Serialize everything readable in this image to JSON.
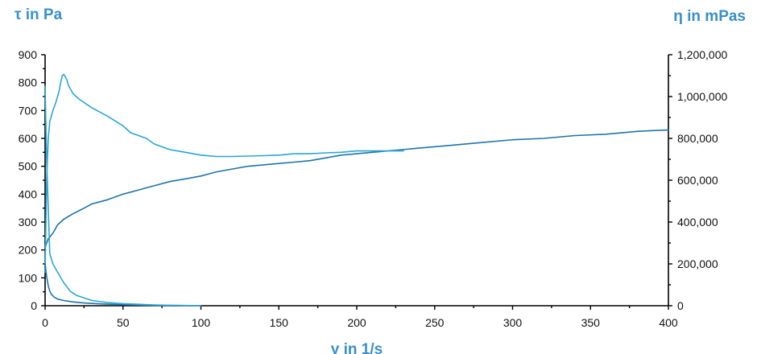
{
  "chart_data": {
    "type": "line",
    "title": "",
    "xlabel": "γ in 1/s",
    "ylabel": "τ in Pa",
    "y2label": "η in mPas",
    "xlim": [
      0,
      400
    ],
    "ylim": [
      0,
      900
    ],
    "y2lim": [
      0,
      1200000
    ],
    "x_ticks": [
      "0",
      "50",
      "100",
      "150",
      "200",
      "250",
      "300",
      "350",
      "400"
    ],
    "y_ticks": [
      "0",
      "100",
      "200",
      "300",
      "400",
      "500",
      "600",
      "700",
      "800",
      "900"
    ],
    "y2_ticks": [
      "0",
      "200,000",
      "400,000",
      "600,000",
      "800,000",
      "1,000,000",
      "1,200,000"
    ],
    "grid": false,
    "legend": "none",
    "colors": {
      "axis_title": "#3a8fc9",
      "series_dark": "#1f74ab",
      "series_light": "#2aa6d4"
    },
    "series": [
      {
        "axis": "left",
        "color": "#1f74ab",
        "x": [
          0,
          2,
          5,
          8,
          12,
          18,
          25,
          30,
          40,
          50,
          60,
          70,
          80,
          90,
          100,
          110,
          120,
          130,
          140,
          150,
          160,
          170,
          180,
          190,
          200,
          220,
          240,
          260,
          280,
          300,
          320,
          340,
          360,
          380,
          390,
          400
        ],
        "y": [
          210,
          240,
          260,
          290,
          310,
          330,
          350,
          365,
          380,
          400,
          415,
          430,
          445,
          455,
          465,
          480,
          490,
          500,
          505,
          510,
          515,
          520,
          530,
          540,
          545,
          555,
          565,
          575,
          585,
          595,
          600,
          610,
          615,
          625,
          628,
          630
        ]
      },
      {
        "axis": "left",
        "color": "#2aa6d4",
        "x": [
          0,
          1,
          2,
          3,
          5,
          7,
          9,
          10,
          11,
          12,
          13,
          14,
          15,
          18,
          22,
          30,
          40,
          50,
          55,
          60,
          65,
          70,
          80,
          90,
          100,
          110,
          120,
          140,
          150,
          160,
          170,
          180,
          190,
          200,
          210,
          220,
          230
        ],
        "y": [
          120,
          450,
          600,
          660,
          700,
          730,
          770,
          800,
          825,
          830,
          820,
          810,
          790,
          760,
          740,
          710,
          680,
          645,
          620,
          610,
          600,
          580,
          560,
          550,
          540,
          535,
          535,
          538,
          540,
          545,
          545,
          548,
          550,
          555,
          555,
          555,
          555
        ]
      },
      {
        "axis": "right",
        "color": "#1f74ab",
        "x": [
          0,
          1,
          2,
          3,
          4,
          6,
          8,
          12,
          18,
          25,
          35,
          45,
          55,
          65,
          75,
          82
        ],
        "y": [
          200000,
          140000,
          95000,
          70000,
          55000,
          40000,
          32000,
          25000,
          18000,
          13000,
          9000,
          6000,
          4000,
          2500,
          1000,
          0
        ]
      },
      {
        "axis": "right",
        "color": "#2aa6d4",
        "x": [
          0,
          1,
          3,
          5,
          8,
          12,
          16,
          20,
          30,
          40,
          50,
          60,
          70,
          80,
          90,
          100
        ],
        "y": [
          1050000,
          700000,
          250000,
          200000,
          160000,
          110000,
          70000,
          50000,
          25000,
          15000,
          10000,
          7000,
          4000,
          2500,
          1000,
          0
        ]
      }
    ]
  }
}
